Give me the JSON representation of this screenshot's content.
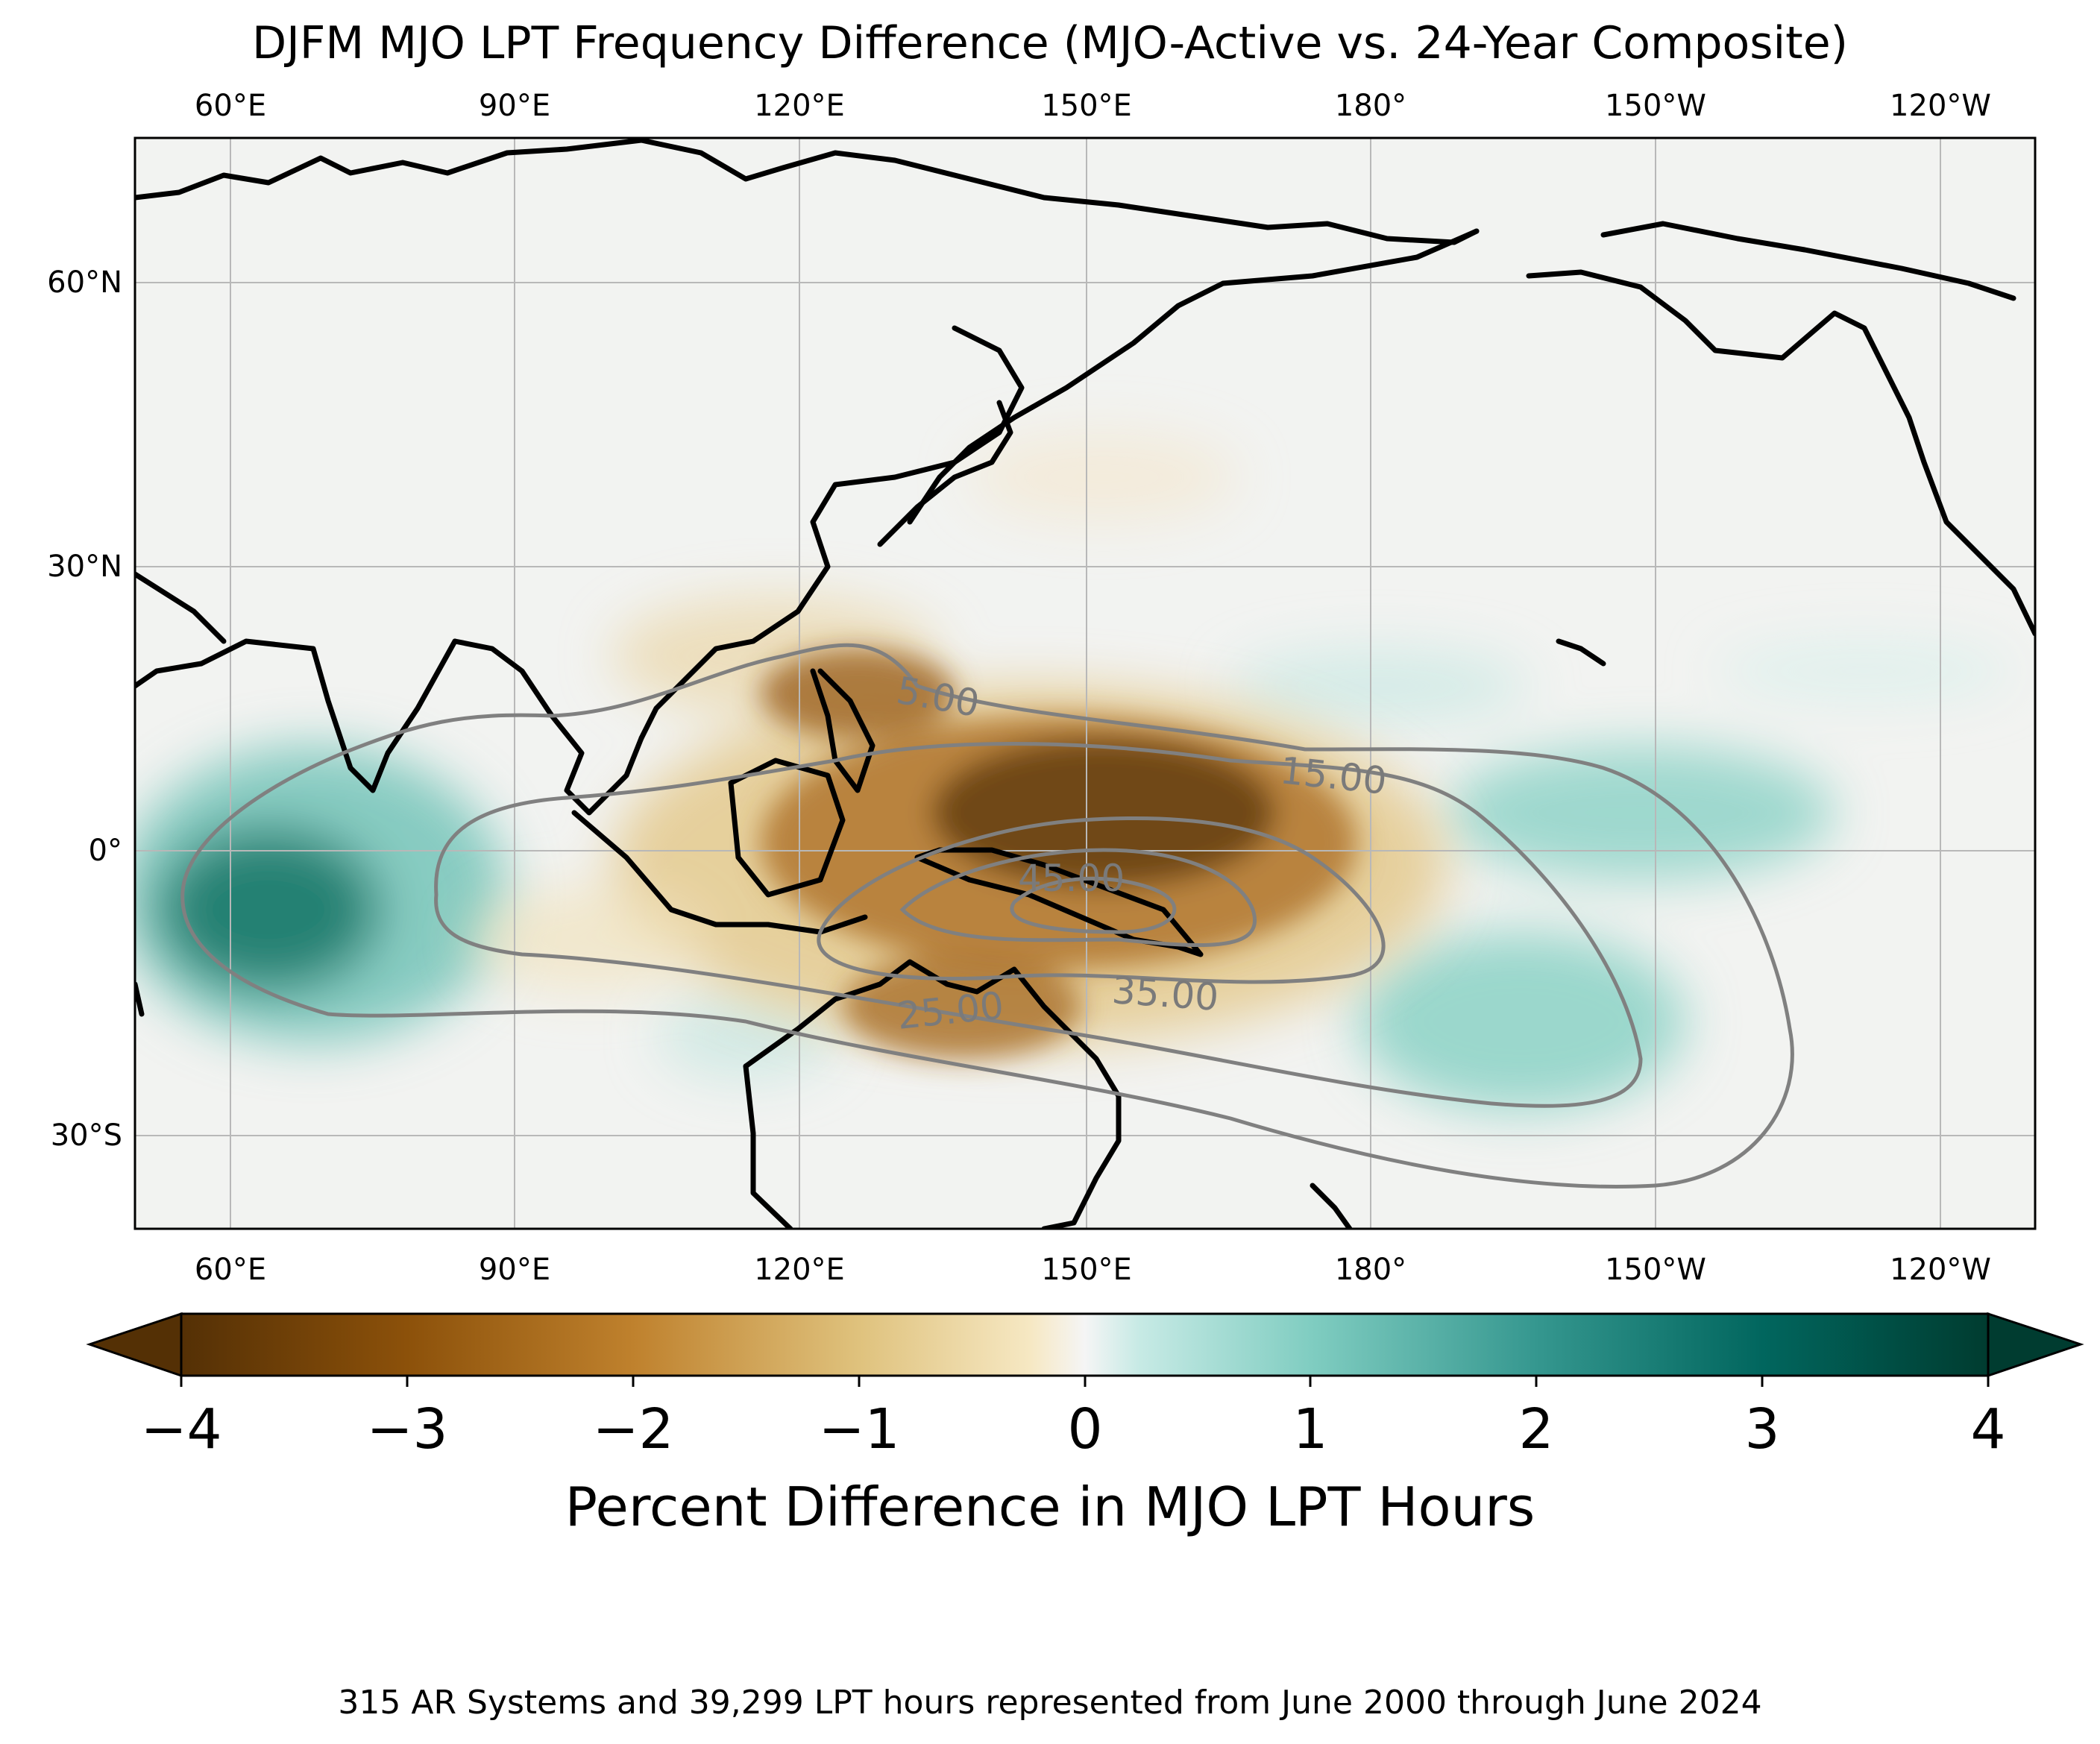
{
  "map": {
    "title": "DJFM MJO LPT Frequency Difference (MJO-Active vs. 24-Year Composite)",
    "lon_labels": [
      "60°E",
      "90°E",
      "120°E",
      "150°E",
      "180°",
      "150°W",
      "120°W"
    ],
    "lat_labels": [
      "60°N",
      "30°N",
      "0°",
      "30°S"
    ],
    "lon_range": [
      50,
      250
    ],
    "lat_range": [
      -40,
      75
    ],
    "projection": "PlateCarree",
    "gridlines": true,
    "contour_color": "#808080",
    "contour_labels": [
      "5.00",
      "15.00",
      "25.00",
      "35.00",
      "45.00"
    ]
  },
  "colorbar": {
    "label": "Percent Difference in MJO LPT Hours",
    "ticks": [
      "−4",
      "−3",
      "−2",
      "−1",
      "0",
      "1",
      "2",
      "3",
      "4"
    ],
    "range": [
      -4,
      4
    ],
    "colormap": "BrBG",
    "extend": "both",
    "negative_color": "#7a4a14",
    "positive_color": "#0f6a5c"
  },
  "caption": "315 AR Systems and 39,299 LPT hours represented from June 2000 through June 2024"
}
